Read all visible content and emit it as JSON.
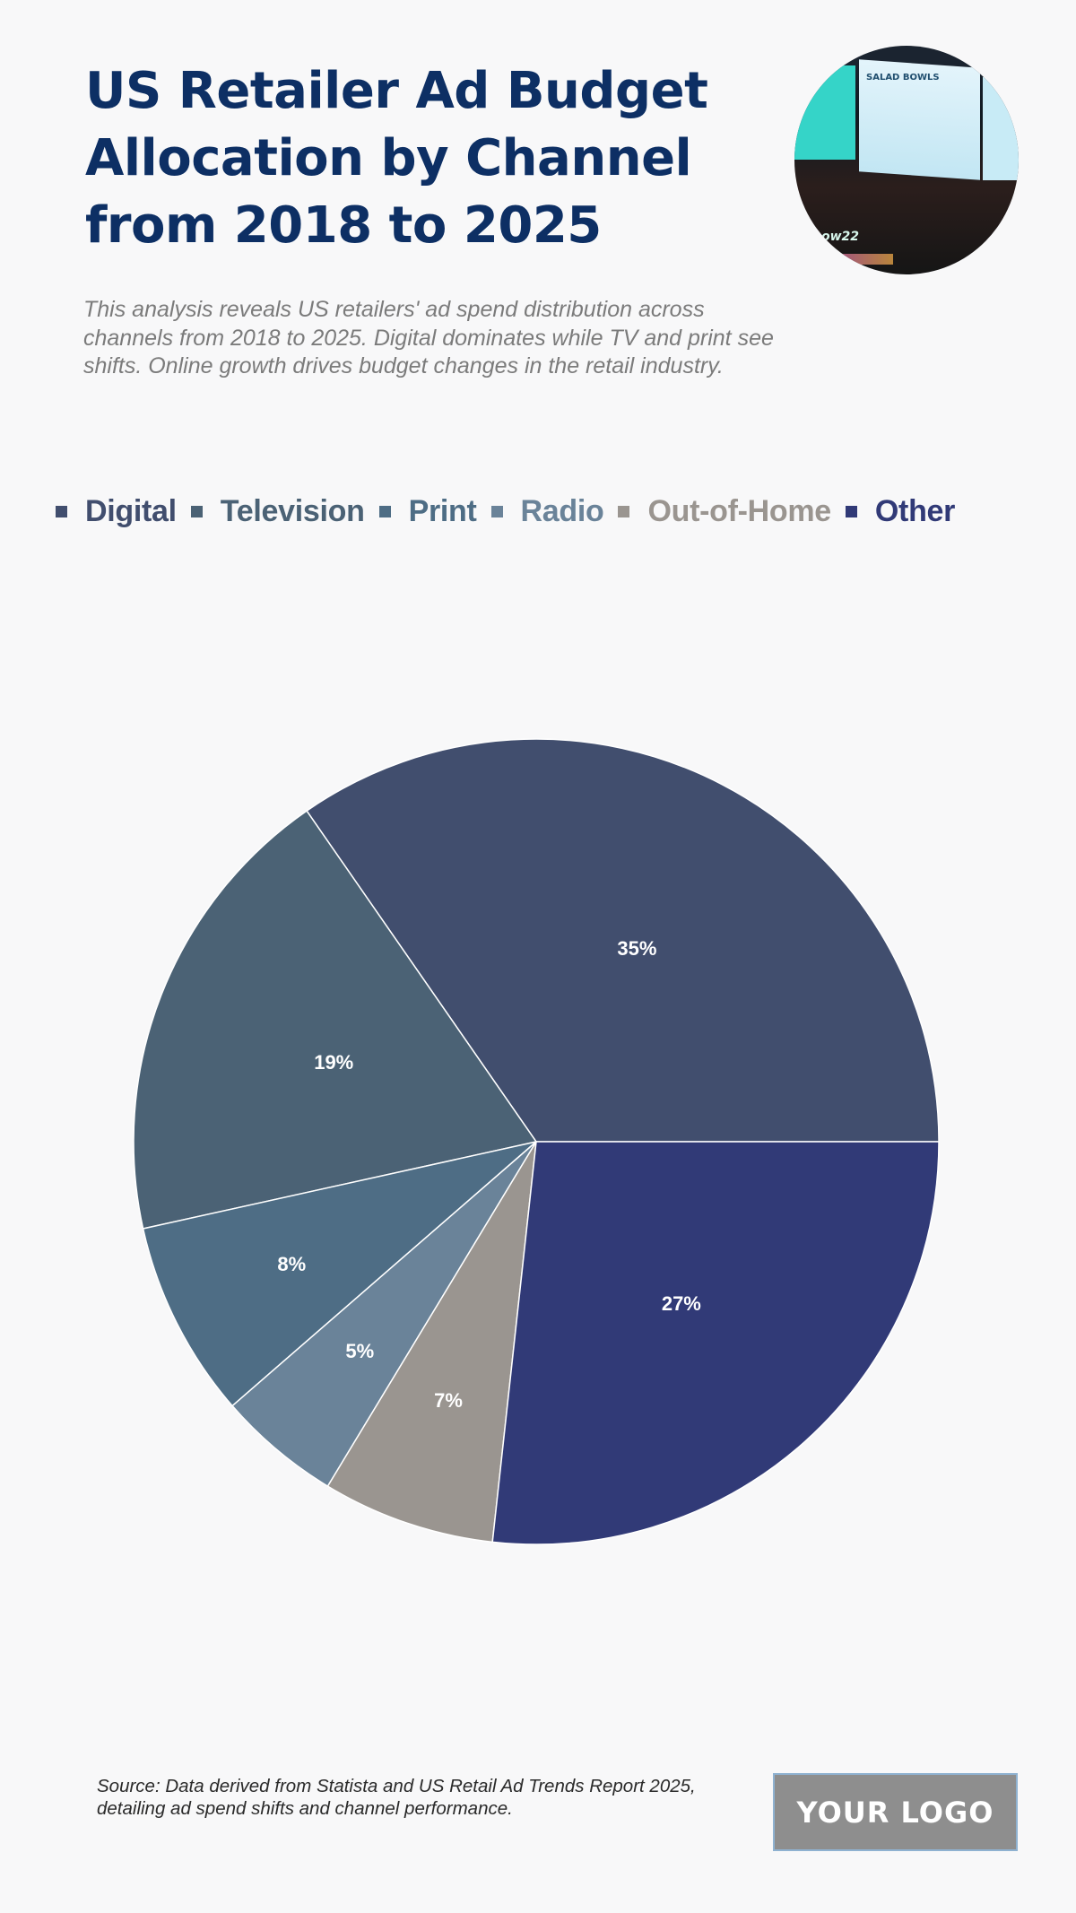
{
  "header": {
    "title": "US Retailer Ad Budget Allocation by Channel from 2018 to 2025",
    "subtitle": "This analysis reveals US retailers' ad spend distribution across channels from 2018 to 2025. Digital dominates while TV and print see shifts. Online growth drives budget changes in the retail industry.",
    "image": {
      "description": "digital-menu-boards-photo",
      "screen_title": "SALAD BOWLS",
      "neon_text": "ow22"
    }
  },
  "legend": [
    {
      "label": "Digital",
      "color": "#414e6e"
    },
    {
      "label": "Television",
      "color": "#4b6275"
    },
    {
      "label": "Print",
      "color": "#4e6d85"
    },
    {
      "label": "Radio",
      "color": "#6a8399"
    },
    {
      "label": "Out-of-Home",
      "color": "#9a9590"
    },
    {
      "label": "Other",
      "color": "#313a77"
    }
  ],
  "chart_data": {
    "type": "pie",
    "title": "US Retailer Ad Budget Allocation by Channel from 2018 to 2025",
    "categories": [
      "Digital",
      "Television",
      "Print",
      "Radio",
      "Out-of-Home",
      "Other"
    ],
    "values": [
      35,
      19,
      8,
      5,
      7,
      27
    ],
    "labels": [
      "35%",
      "19%",
      "8%",
      "5%",
      "7%",
      "27%"
    ],
    "colors": [
      "#414e6e",
      "#4b6275",
      "#4e6d85",
      "#6a8399",
      "#9a9590",
      "#313a77"
    ],
    "start_angle": "east, counter-clockwise",
    "legend_position": "top"
  },
  "footer": {
    "source": "Source: Data derived from Statista and US Retail Ad Trends Report 2025, detailing ad spend shifts and channel performance.",
    "logo_text": "YOUR LOGO"
  }
}
